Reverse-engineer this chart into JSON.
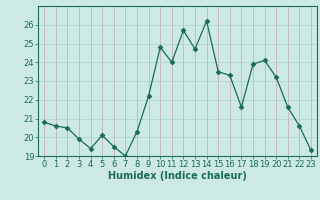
{
  "x": [
    0,
    1,
    2,
    3,
    4,
    5,
    6,
    7,
    8,
    9,
    10,
    11,
    12,
    13,
    14,
    15,
    16,
    17,
    18,
    19,
    20,
    21,
    22,
    23
  ],
  "y": [
    20.8,
    20.6,
    20.5,
    19.9,
    19.4,
    20.1,
    19.5,
    19.0,
    20.3,
    22.2,
    24.8,
    24.0,
    25.7,
    24.7,
    26.2,
    23.5,
    23.3,
    21.6,
    23.9,
    24.1,
    23.2,
    21.6,
    20.6,
    19.3
  ],
  "line_color": "#1a6b5a",
  "marker": "D",
  "marker_size": 2.5,
  "bg_color": "#cce9e5",
  "grid_minor_color": "#aad4cf",
  "grid_major_color": "#c8a8a8",
  "xlabel": "Humidex (Indice chaleur)",
  "ylim": [
    19,
    27
  ],
  "xlim": [
    -0.5,
    23.5
  ],
  "yticks": [
    19,
    20,
    21,
    22,
    23,
    24,
    25,
    26
  ],
  "xticks": [
    0,
    1,
    2,
    3,
    4,
    5,
    6,
    7,
    8,
    9,
    10,
    11,
    12,
    13,
    14,
    15,
    16,
    17,
    18,
    19,
    20,
    21,
    22,
    23
  ],
  "tick_fontsize": 6,
  "xlabel_fontsize": 7
}
